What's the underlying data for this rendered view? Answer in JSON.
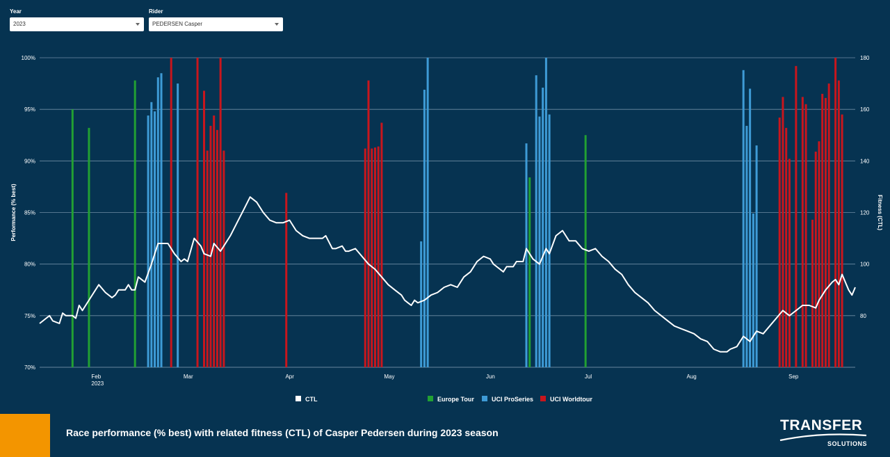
{
  "filters": {
    "year": {
      "label": "Year",
      "value": "2023"
    },
    "rider": {
      "label": "Rider",
      "value": "PEDERSEN Casper"
    }
  },
  "footer": {
    "caption": "Race performance (% best) with related fitness (CTL) of Casper Pedersen during 2023 season"
  },
  "logo": {
    "line1": "TRANSFER",
    "line2": "SOLUTIONS"
  },
  "chart_data": {
    "type": "bar",
    "ylabel": "Performance (% best)",
    "y2label": "Fitness (CTL)",
    "ylim": [
      70,
      100
    ],
    "y2lim": [
      60,
      180
    ],
    "yticks": [
      "70%",
      "75%",
      "80%",
      "85%",
      "90%",
      "95%",
      "100%"
    ],
    "y2ticks": [
      "80",
      "100",
      "120",
      "140",
      "160",
      "180"
    ],
    "xlim": [
      "2023-01-15",
      "2023-09-20"
    ],
    "xticks": [
      {
        "date": "2023-02-01",
        "label": "Feb",
        "sub": "2023"
      },
      {
        "date": "2023-03-01",
        "label": "Mar",
        "sub": ""
      },
      {
        "date": "2023-04-01",
        "label": "Apr",
        "sub": ""
      },
      {
        "date": "2023-05-01",
        "label": "May",
        "sub": ""
      },
      {
        "date": "2023-06-01",
        "label": "Jun",
        "sub": ""
      },
      {
        "date": "2023-07-01",
        "label": "Jul",
        "sub": ""
      },
      {
        "date": "2023-08-01",
        "label": "Aug",
        "sub": ""
      },
      {
        "date": "2023-09-01",
        "label": "Sep",
        "sub": ""
      }
    ],
    "grid": true,
    "legend_position": "bottom",
    "legend": [
      {
        "name": "CTL",
        "color": "#ffffff"
      },
      {
        "name": "Europe Tour",
        "color": "#22a033"
      },
      {
        "name": "UCI ProSeries",
        "color": "#3e9bd6"
      },
      {
        "name": "UCI Worldtour",
        "color": "#c8161d"
      }
    ],
    "series": [
      {
        "name": "Europe Tour",
        "color": "#22a033",
        "points": [
          [
            "2023-01-25",
            95.0
          ],
          [
            "2023-01-30",
            93.2
          ],
          [
            "2023-02-13",
            97.8
          ],
          [
            "2023-06-13",
            88.4
          ],
          [
            "2023-06-30",
            92.5
          ]
        ]
      },
      {
        "name": "UCI ProSeries",
        "color": "#3e9bd6",
        "points": [
          [
            "2023-02-17",
            94.4
          ],
          [
            "2023-02-18",
            95.7
          ],
          [
            "2023-02-19",
            94.8
          ],
          [
            "2023-02-20",
            98.1
          ],
          [
            "2023-02-21",
            98.5
          ],
          [
            "2023-02-26",
            97.5
          ],
          [
            "2023-05-11",
            82.2
          ],
          [
            "2023-05-12",
            96.9
          ],
          [
            "2023-05-13",
            100.0
          ],
          [
            "2023-06-12",
            91.7
          ],
          [
            "2023-06-15",
            98.3
          ],
          [
            "2023-06-16",
            94.3
          ],
          [
            "2023-06-17",
            97.1
          ],
          [
            "2023-06-18",
            100.0
          ],
          [
            "2023-06-19",
            94.5
          ],
          [
            "2023-08-17",
            98.8
          ],
          [
            "2023-08-18",
            93.4
          ],
          [
            "2023-08-19",
            97.0
          ],
          [
            "2023-08-20",
            84.9
          ],
          [
            "2023-08-21",
            91.5
          ]
        ]
      },
      {
        "name": "UCI Worldtour",
        "color": "#c8161d",
        "points": [
          [
            "2023-02-24",
            100.0
          ],
          [
            "2023-03-04",
            100.0
          ],
          [
            "2023-03-06",
            96.8
          ],
          [
            "2023-03-07",
            91.0
          ],
          [
            "2023-03-08",
            93.4
          ],
          [
            "2023-03-09",
            94.4
          ],
          [
            "2023-03-10",
            93.0
          ],
          [
            "2023-03-11",
            100.0
          ],
          [
            "2023-03-12",
            91.0
          ],
          [
            "2023-03-31",
            86.9
          ],
          [
            "2023-04-24",
            91.2
          ],
          [
            "2023-04-25",
            97.8
          ],
          [
            "2023-04-26",
            91.2
          ],
          [
            "2023-04-27",
            91.3
          ],
          [
            "2023-04-28",
            91.4
          ],
          [
            "2023-04-29",
            93.7
          ],
          [
            "2023-08-28",
            94.2
          ],
          [
            "2023-08-29",
            96.2
          ],
          [
            "2023-08-30",
            93.2
          ],
          [
            "2023-08-31",
            90.2
          ],
          [
            "2023-09-02",
            99.2
          ],
          [
            "2023-09-04",
            96.2
          ],
          [
            "2023-09-05",
            95.5
          ],
          [
            "2023-09-07",
            84.3
          ],
          [
            "2023-09-08",
            90.9
          ],
          [
            "2023-09-09",
            91.9
          ],
          [
            "2023-09-10",
            96.5
          ],
          [
            "2023-09-11",
            96.1
          ],
          [
            "2023-09-12",
            97.5
          ],
          [
            "2023-09-14",
            100.0
          ],
          [
            "2023-09-15",
            97.8
          ],
          [
            "2023-09-16",
            94.5
          ]
        ]
      },
      {
        "name": "CTL",
        "color": "#ffffff",
        "points": [
          [
            "2023-01-15",
            77
          ],
          [
            "2023-01-17",
            79
          ],
          [
            "2023-01-18",
            80
          ],
          [
            "2023-01-19",
            78
          ],
          [
            "2023-01-21",
            77
          ],
          [
            "2023-01-22",
            81
          ],
          [
            "2023-01-23",
            80
          ],
          [
            "2023-01-25",
            80
          ],
          [
            "2023-01-26",
            79
          ],
          [
            "2023-01-27",
            84
          ],
          [
            "2023-01-28",
            82
          ],
          [
            "2023-01-30",
            86
          ],
          [
            "2023-02-02",
            92
          ],
          [
            "2023-02-04",
            89
          ],
          [
            "2023-02-06",
            87
          ],
          [
            "2023-02-07",
            88
          ],
          [
            "2023-02-08",
            90
          ],
          [
            "2023-02-10",
            90
          ],
          [
            "2023-02-11",
            92
          ],
          [
            "2023-02-12",
            90
          ],
          [
            "2023-02-13",
            90
          ],
          [
            "2023-02-14",
            95
          ],
          [
            "2023-02-16",
            93
          ],
          [
            "2023-02-18",
            100
          ],
          [
            "2023-02-20",
            108
          ],
          [
            "2023-02-23",
            108
          ],
          [
            "2023-02-25",
            104
          ],
          [
            "2023-02-27",
            101
          ],
          [
            "2023-02-28",
            102
          ],
          [
            "2023-03-01",
            101
          ],
          [
            "2023-03-03",
            110
          ],
          [
            "2023-03-05",
            107
          ],
          [
            "2023-03-06",
            104
          ],
          [
            "2023-03-08",
            103
          ],
          [
            "2023-03-09",
            108
          ],
          [
            "2023-03-11",
            105
          ],
          [
            "2023-03-12",
            107
          ],
          [
            "2023-03-14",
            111
          ],
          [
            "2023-03-16",
            116
          ],
          [
            "2023-03-18",
            121
          ],
          [
            "2023-03-20",
            126
          ],
          [
            "2023-03-22",
            124
          ],
          [
            "2023-03-24",
            120
          ],
          [
            "2023-03-26",
            117
          ],
          [
            "2023-03-28",
            116
          ],
          [
            "2023-03-30",
            116
          ],
          [
            "2023-04-01",
            117
          ],
          [
            "2023-04-03",
            113
          ],
          [
            "2023-04-05",
            111
          ],
          [
            "2023-04-07",
            110
          ],
          [
            "2023-04-09",
            110
          ],
          [
            "2023-04-11",
            110
          ],
          [
            "2023-04-12",
            111
          ],
          [
            "2023-04-14",
            106
          ],
          [
            "2023-04-15",
            106
          ],
          [
            "2023-04-17",
            107
          ],
          [
            "2023-04-18",
            105
          ],
          [
            "2023-04-19",
            105
          ],
          [
            "2023-04-21",
            106
          ],
          [
            "2023-04-23",
            103
          ],
          [
            "2023-04-25",
            100
          ],
          [
            "2023-04-27",
            98
          ],
          [
            "2023-04-29",
            95
          ],
          [
            "2023-05-01",
            92
          ],
          [
            "2023-05-03",
            90
          ],
          [
            "2023-05-05",
            88
          ],
          [
            "2023-05-06",
            86
          ],
          [
            "2023-05-07",
            85
          ],
          [
            "2023-05-08",
            84
          ],
          [
            "2023-05-09",
            86
          ],
          [
            "2023-05-10",
            85
          ],
          [
            "2023-05-12",
            86
          ],
          [
            "2023-05-14",
            88
          ],
          [
            "2023-05-16",
            89
          ],
          [
            "2023-05-18",
            91
          ],
          [
            "2023-05-20",
            92
          ],
          [
            "2023-05-22",
            91
          ],
          [
            "2023-05-24",
            95
          ],
          [
            "2023-05-26",
            97
          ],
          [
            "2023-05-28",
            101
          ],
          [
            "2023-05-30",
            103
          ],
          [
            "2023-06-01",
            102
          ],
          [
            "2023-06-02",
            100
          ],
          [
            "2023-06-03",
            99
          ],
          [
            "2023-06-05",
            97
          ],
          [
            "2023-06-06",
            99
          ],
          [
            "2023-06-08",
            99
          ],
          [
            "2023-06-09",
            101
          ],
          [
            "2023-06-11",
            101
          ],
          [
            "2023-06-12",
            106
          ],
          [
            "2023-06-14",
            102
          ],
          [
            "2023-06-16",
            100
          ],
          [
            "2023-06-18",
            106
          ],
          [
            "2023-06-19",
            104
          ],
          [
            "2023-06-21",
            111
          ],
          [
            "2023-06-23",
            113
          ],
          [
            "2023-06-25",
            109
          ],
          [
            "2023-06-27",
            109
          ],
          [
            "2023-06-29",
            106
          ],
          [
            "2023-07-01",
            105
          ],
          [
            "2023-07-03",
            106
          ],
          [
            "2023-07-05",
            103
          ],
          [
            "2023-07-07",
            101
          ],
          [
            "2023-07-09",
            98
          ],
          [
            "2023-07-11",
            96
          ],
          [
            "2023-07-13",
            92
          ],
          [
            "2023-07-15",
            89
          ],
          [
            "2023-07-17",
            87
          ],
          [
            "2023-07-19",
            85
          ],
          [
            "2023-07-21",
            82
          ],
          [
            "2023-07-23",
            80
          ],
          [
            "2023-07-25",
            78
          ],
          [
            "2023-07-27",
            76
          ],
          [
            "2023-07-29",
            75
          ],
          [
            "2023-07-31",
            74
          ],
          [
            "2023-08-02",
            73
          ],
          [
            "2023-08-04",
            71
          ],
          [
            "2023-08-06",
            70
          ],
          [
            "2023-08-08",
            67
          ],
          [
            "2023-08-10",
            66
          ],
          [
            "2023-08-12",
            66
          ],
          [
            "2023-08-13",
            67
          ],
          [
            "2023-08-15",
            68
          ],
          [
            "2023-08-17",
            72
          ],
          [
            "2023-08-19",
            70
          ],
          [
            "2023-08-21",
            74
          ],
          [
            "2023-08-23",
            73
          ],
          [
            "2023-08-25",
            76
          ],
          [
            "2023-08-27",
            79
          ],
          [
            "2023-08-29",
            82
          ],
          [
            "2023-08-31",
            80
          ],
          [
            "2023-09-02",
            82
          ],
          [
            "2023-09-04",
            84
          ],
          [
            "2023-09-06",
            84
          ],
          [
            "2023-09-08",
            83
          ],
          [
            "2023-09-09",
            86
          ],
          [
            "2023-09-11",
            90
          ],
          [
            "2023-09-13",
            93
          ],
          [
            "2023-09-14",
            94
          ],
          [
            "2023-09-15",
            92
          ],
          [
            "2023-09-16",
            96
          ],
          [
            "2023-09-18",
            90
          ],
          [
            "2023-09-19",
            88
          ],
          [
            "2023-09-20",
            91
          ]
        ]
      }
    ]
  }
}
